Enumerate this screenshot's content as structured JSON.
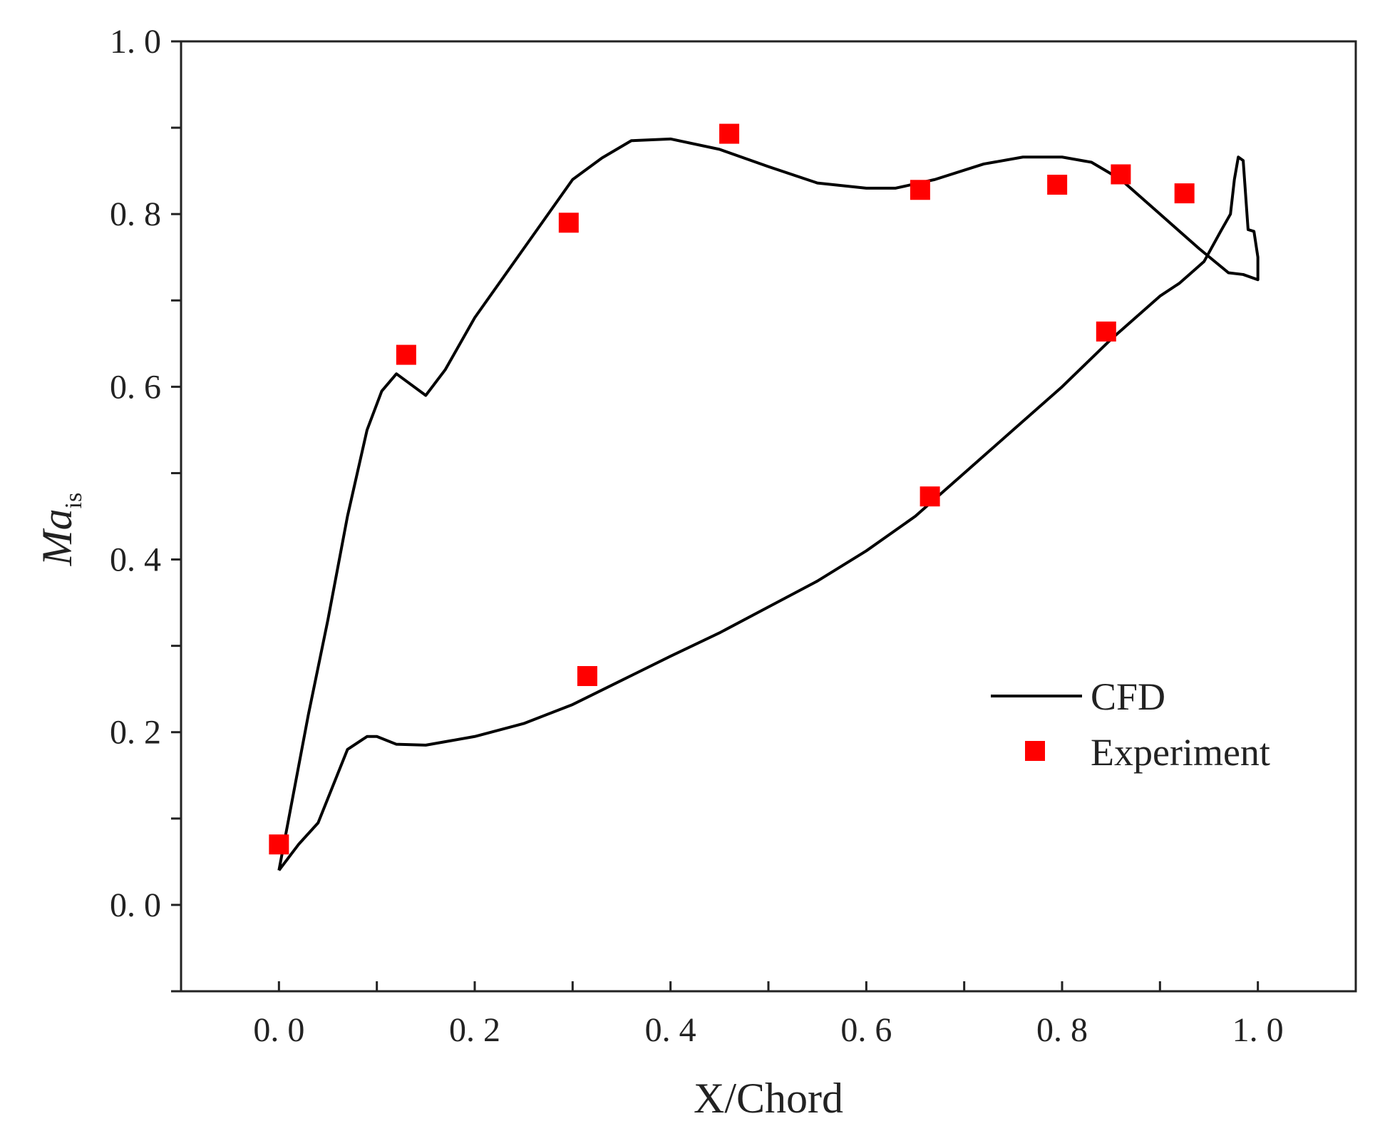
{
  "chart_data": {
    "type": "line",
    "title": "",
    "xlabel": "X/Chord",
    "ylabel_main": "Ma",
    "ylabel_sub": "is",
    "xlim": [
      -0.1,
      1.1
    ],
    "ylim": [
      -0.1,
      1.0
    ],
    "xticks": [
      0.0,
      0.2,
      0.4,
      0.6,
      0.8,
      1.0
    ],
    "xtick_labels": [
      "0. 0",
      "0. 2",
      "0. 4",
      "0. 6",
      "0. 8",
      "1. 0"
    ],
    "yticks": [
      0.0,
      0.2,
      0.4,
      0.6,
      0.8,
      1.0
    ],
    "ytick_labels": [
      "0. 0",
      "0. 2",
      "0. 4",
      "0. 6",
      "0. 8",
      "1. 0"
    ],
    "minor_step": 0.1,
    "grid": false,
    "legend_position": "lower-right",
    "series": [
      {
        "name": "CFD",
        "kind": "line",
        "color": "#000000",
        "points": [
          [
            0,
            0.04
          ],
          [
            0.01,
            0.1
          ],
          [
            0.03,
            0.22
          ],
          [
            0.05,
            0.33
          ],
          [
            0.07,
            0.45
          ],
          [
            0.09,
            0.55
          ],
          [
            0.105,
            0.595
          ],
          [
            0.12,
            0.615
          ],
          [
            0.15,
            0.59
          ],
          [
            0.17,
            0.62
          ],
          [
            0.2,
            0.68
          ],
          [
            0.25,
            0.76
          ],
          [
            0.3,
            0.84
          ],
          [
            0.33,
            0.865
          ],
          [
            0.36,
            0.885
          ],
          [
            0.4,
            0.887
          ],
          [
            0.45,
            0.875
          ],
          [
            0.5,
            0.855
          ],
          [
            0.55,
            0.836
          ],
          [
            0.6,
            0.83
          ],
          [
            0.63,
            0.83
          ],
          [
            0.67,
            0.84
          ],
          [
            0.72,
            0.858
          ],
          [
            0.76,
            0.866
          ],
          [
            0.8,
            0.866
          ],
          [
            0.83,
            0.86
          ],
          [
            0.86,
            0.84
          ],
          [
            0.9,
            0.8
          ],
          [
            0.94,
            0.76
          ],
          [
            0.97,
            0.732
          ],
          [
            0.985,
            0.73
          ],
          [
            1.0,
            0.724
          ],
          [
            1.0,
            0.75
          ],
          [
            0.996,
            0.78
          ],
          [
            0.99,
            0.782
          ],
          [
            0.985,
            0.862
          ],
          [
            0.98,
            0.866
          ],
          [
            0.976,
            0.84
          ],
          [
            0.972,
            0.8
          ],
          [
            0.962,
            0.78
          ],
          [
            0.945,
            0.745
          ],
          [
            0.92,
            0.72
          ],
          [
            0.9,
            0.705
          ],
          [
            0.85,
            0.655
          ],
          [
            0.8,
            0.6
          ],
          [
            0.75,
            0.55
          ],
          [
            0.7,
            0.5
          ],
          [
            0.65,
            0.45
          ],
          [
            0.6,
            0.41
          ],
          [
            0.55,
            0.375
          ],
          [
            0.5,
            0.345
          ],
          [
            0.45,
            0.315
          ],
          [
            0.4,
            0.288
          ],
          [
            0.35,
            0.26
          ],
          [
            0.3,
            0.232
          ],
          [
            0.25,
            0.21
          ],
          [
            0.2,
            0.195
          ],
          [
            0.15,
            0.185
          ],
          [
            0.12,
            0.186
          ],
          [
            0.1,
            0.195
          ],
          [
            0.09,
            0.195
          ],
          [
            0.07,
            0.18
          ],
          [
            0.04,
            0.095
          ],
          [
            0.02,
            0.07
          ],
          [
            0,
            0.04
          ]
        ]
      },
      {
        "name": "Experiment",
        "kind": "scatter",
        "color": "#ff0000",
        "points": [
          [
            0.0,
            0.07
          ],
          [
            0.13,
            0.637
          ],
          [
            0.296,
            0.79
          ],
          [
            0.46,
            0.893
          ],
          [
            0.655,
            0.828
          ],
          [
            0.795,
            0.834
          ],
          [
            0.86,
            0.846
          ],
          [
            0.925,
            0.824
          ],
          [
            0.315,
            0.265
          ],
          [
            0.665,
            0.473
          ],
          [
            0.845,
            0.664
          ]
        ]
      }
    ]
  }
}
